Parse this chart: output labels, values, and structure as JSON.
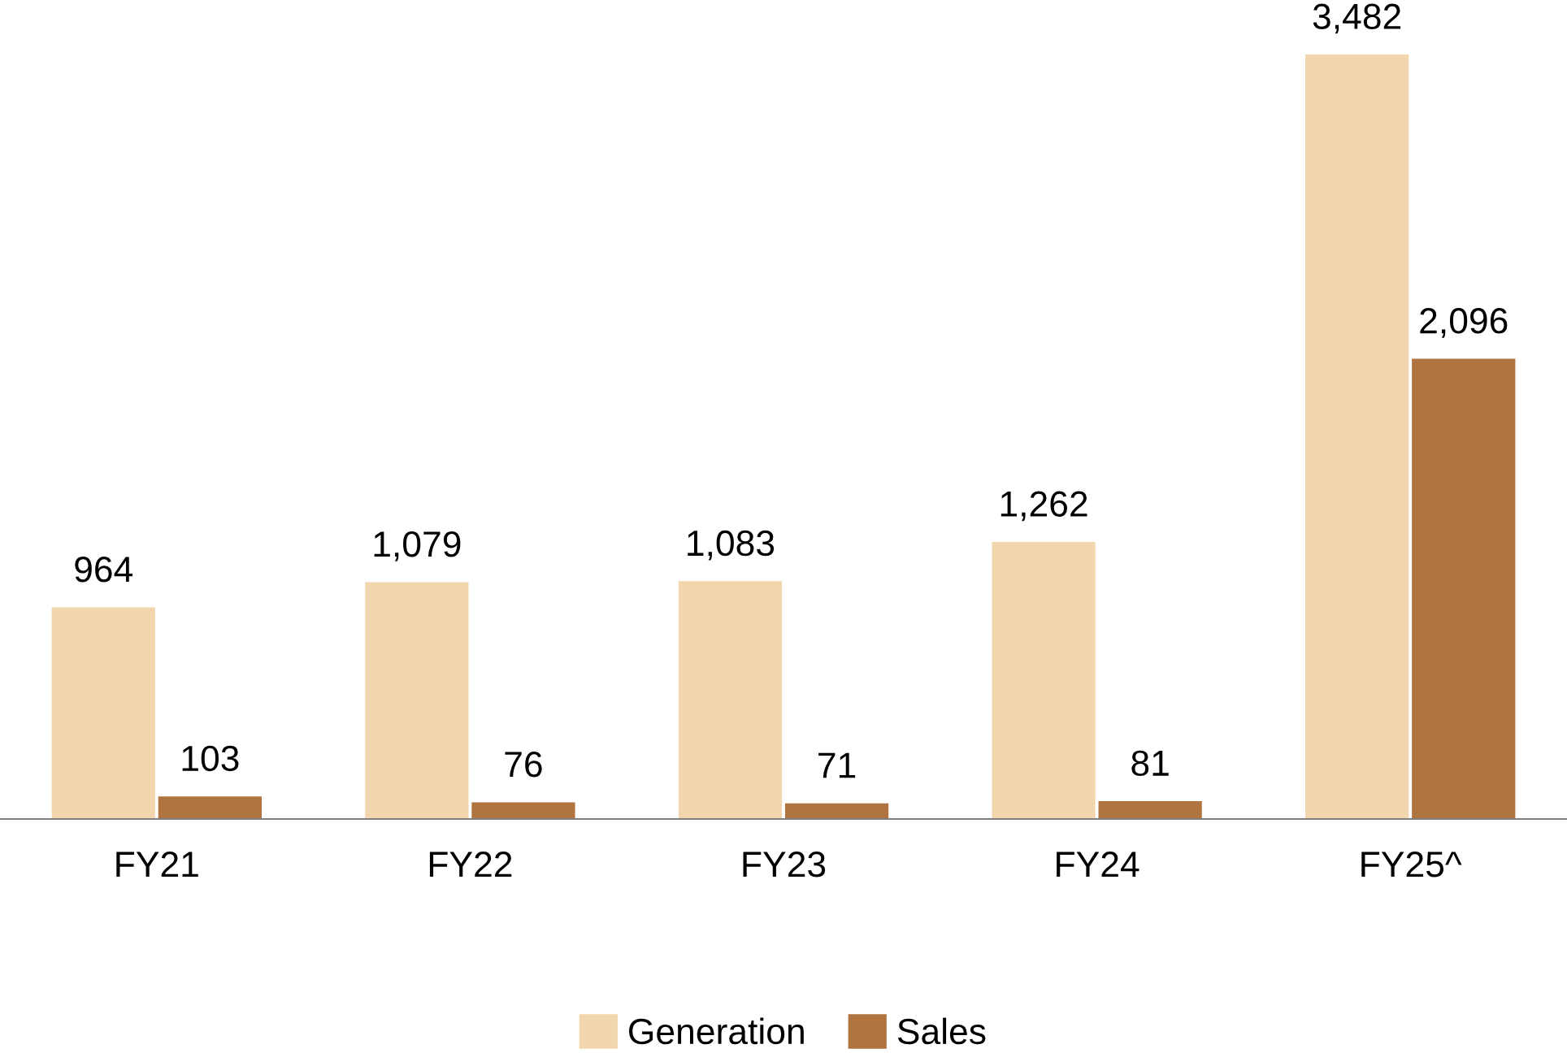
{
  "chart_data": {
    "type": "bar",
    "categories": [
      "FY21",
      "FY22",
      "FY23",
      "FY24",
      "FY25^"
    ],
    "series": [
      {
        "name": "Generation",
        "color": "#f2d6ae",
        "values": [
          964,
          1079,
          1083,
          1262,
          3482
        ],
        "value_labels": [
          "964",
          "1,079",
          "1,083",
          "1,262",
          "3,482"
        ]
      },
      {
        "name": "Sales",
        "color": "#b07440",
        "values": [
          103,
          76,
          71,
          81,
          2096
        ],
        "value_labels": [
          "103",
          "76",
          "71",
          "81",
          "2,096"
        ]
      }
    ],
    "legend": "bottom"
  }
}
